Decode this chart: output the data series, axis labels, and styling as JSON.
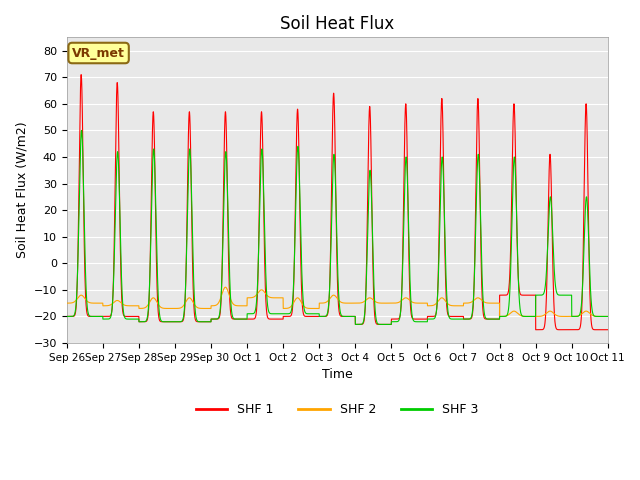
{
  "title": "Soil Heat Flux",
  "ylabel": "Soil Heat Flux (W/m2)",
  "xlabel": "Time",
  "annotation": "VR_met",
  "legend_labels": [
    "SHF 1",
    "SHF 2",
    "SHF 3"
  ],
  "legend_colors": [
    "#ff0000",
    "#ffa500",
    "#00cc00"
  ],
  "line_colors": [
    "#ff0000",
    "#ffa500",
    "#00cc00"
  ],
  "ylim": [
    -30,
    85
  ],
  "yticks": [
    -30,
    -20,
    -10,
    0,
    10,
    20,
    30,
    40,
    50,
    60,
    70,
    80
  ],
  "bg_color": "#e8e8e8",
  "fig_bg": "#ffffff",
  "total_days": 15,
  "xtick_labels": [
    "Sep 26",
    "Sep 27",
    "Sep 28",
    "Sep 29",
    "Sep 30",
    "Oct 1",
    "Oct 2",
    "Oct 3",
    "Oct 4",
    "Oct 5",
    "Oct 6",
    "Oct 7",
    "Oct 8",
    "Oct 9",
    "Oct 10",
    "Oct 11"
  ],
  "day_peak_red": [
    71,
    68,
    57,
    57,
    57,
    57,
    58,
    64,
    59,
    60,
    62,
    62,
    60,
    41,
    60
  ],
  "day_peak_green": [
    50,
    42,
    43,
    43,
    42,
    43,
    44,
    41,
    35,
    40,
    40,
    41,
    40,
    25,
    25
  ],
  "day_trough_red": [
    -20,
    -20,
    -22,
    -22,
    -21,
    -21,
    -20,
    -20,
    -23,
    -21,
    -20,
    -21,
    -12,
    -25,
    -25
  ],
  "day_trough_orange": [
    -15,
    -16,
    -17,
    -17,
    -16,
    -13,
    -17,
    -15,
    -15,
    -15,
    -16,
    -15,
    -20,
    -20,
    -20
  ],
  "day_trough_green": [
    -20,
    -21,
    -22,
    -22,
    -21,
    -19,
    -19,
    -20,
    -23,
    -22,
    -21,
    -21,
    -20,
    -12,
    -20
  ],
  "orange_hump_peak": [
    -12,
    -14,
    -13,
    -13,
    -9,
    -10,
    -13,
    -12,
    -13,
    -13,
    -13,
    -13,
    -18,
    -18,
    -18
  ]
}
